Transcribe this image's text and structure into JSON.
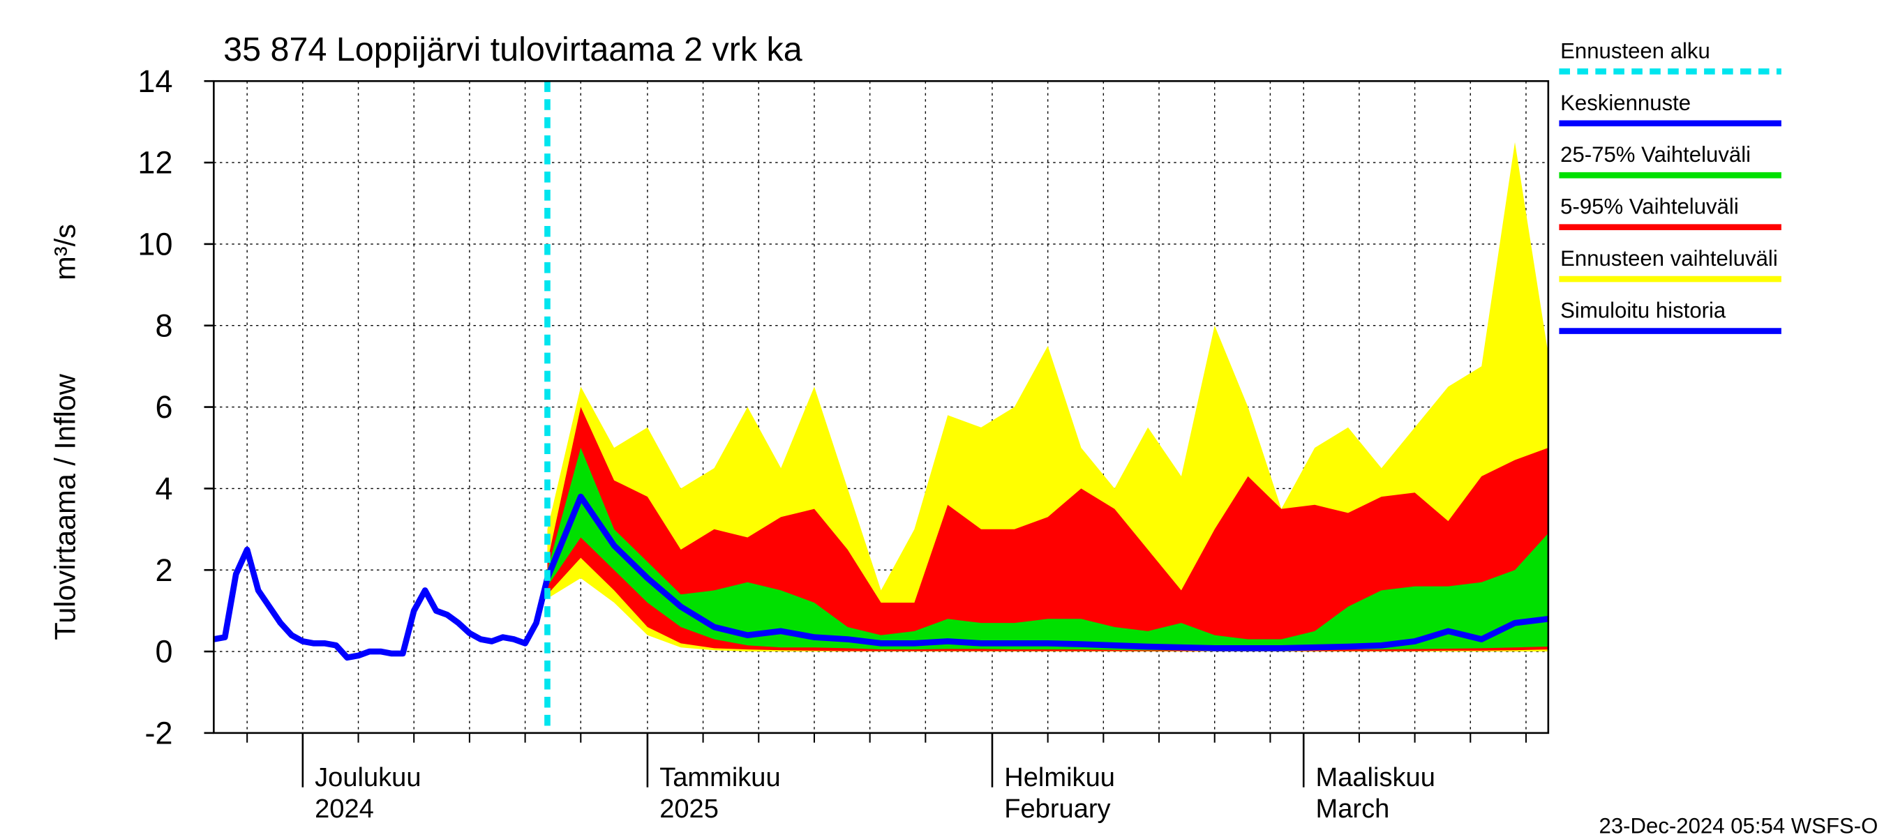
{
  "chart_data": {
    "type": "forecast",
    "title": "35 874 Loppijärvi tulovirtaama 2 vrk ka",
    "ylabel": "Tulovirtaama / Inflow",
    "yunit": "m³/s",
    "timestamp": "23-Dec-2024 05:54 WSFS-O",
    "xlim": [
      "2024-11-23",
      "2025-03-23"
    ],
    "ylim": [
      -2,
      14
    ],
    "yticks": [
      -2,
      0,
      2,
      4,
      6,
      8,
      10,
      12,
      14
    ],
    "xticks": [
      {
        "value": "2024-12-01",
        "label": "Joulukuu",
        "sublabel": "2024"
      },
      {
        "value": "2025-01-01",
        "label": "Tammikuu",
        "sublabel": "2025"
      },
      {
        "value": "2025-02-01",
        "label": "Helmikuu",
        "sublabel": "February"
      },
      {
        "value": "2025-03-01",
        "label": "Maaliskuu",
        "sublabel": "March"
      }
    ],
    "xgrid": [
      "2024-11-26",
      "2024-12-06",
      "2024-12-11",
      "2024-12-16",
      "2024-12-21",
      "2024-12-26",
      "2025-01-06",
      "2025-01-11",
      "2025-01-16",
      "2025-01-21",
      "2025-01-26",
      "2025-02-06",
      "2025-02-11",
      "2025-02-16",
      "2025-02-21",
      "2025-02-26",
      "2025-03-06",
      "2025-03-11",
      "2025-03-16",
      "2025-03-21"
    ],
    "grid": true,
    "forecast_start": {
      "name": "Ennusteen alku",
      "color": "#00e5ee",
      "x": "2024-12-23"
    },
    "forecast_x": [
      "2024-12-23",
      "2024-12-26",
      "2024-12-29",
      "2025-01-01",
      "2025-01-04",
      "2025-01-07",
      "2025-01-10",
      "2025-01-13",
      "2025-01-16",
      "2025-01-19",
      "2025-01-22",
      "2025-01-25",
      "2025-01-28",
      "2025-01-31",
      "2025-02-03",
      "2025-02-06",
      "2025-02-09",
      "2025-02-12",
      "2025-02-15",
      "2025-02-18",
      "2025-02-21",
      "2025-02-24",
      "2025-02-27",
      "2025-03-02",
      "2025-03-05",
      "2025-03-08",
      "2025-03-11",
      "2025-03-14",
      "2025-03-17",
      "2025-03-20",
      "2025-03-23"
    ],
    "bands": [
      {
        "name": "Ennusteen vaihteluväli",
        "color": "#ffff00",
        "upper": [
          3.0,
          6.5,
          5.0,
          5.5,
          4.0,
          4.5,
          6.0,
          4.5,
          6.5,
          4.0,
          1.5,
          3.0,
          5.8,
          5.5,
          6.0,
          7.5,
          5.0,
          4.0,
          5.5,
          4.3,
          8.0,
          6.0,
          3.5,
          5.0,
          5.5,
          4.5,
          5.5,
          6.5,
          7.0,
          12.5,
          7.3
        ],
        "lower": [
          1.3,
          1.8,
          1.2,
          0.4,
          0.1,
          0.03,
          0,
          0,
          0,
          0,
          0,
          0,
          0,
          0,
          0,
          0,
          0,
          0,
          0,
          0,
          0,
          0,
          0,
          0,
          0,
          0,
          0,
          0,
          0,
          0,
          0
        ]
      },
      {
        "name": "5-95% Vaihteluväli",
        "color": "#ff0000",
        "upper": [
          2.2,
          6.0,
          4.2,
          3.8,
          2.5,
          3.0,
          2.8,
          3.3,
          3.5,
          2.5,
          1.2,
          1.2,
          3.6,
          3.0,
          3.0,
          3.3,
          4.0,
          3.5,
          2.5,
          1.5,
          3.0,
          4.3,
          3.5,
          3.6,
          3.4,
          3.8,
          3.9,
          3.2,
          4.3,
          4.7,
          5.0
        ],
        "lower": [
          1.4,
          2.3,
          1.5,
          0.6,
          0.2,
          0.08,
          0.05,
          0.03,
          0.02,
          0.01,
          0.01,
          0.01,
          0.01,
          0.01,
          0.01,
          0.01,
          0.01,
          0.01,
          0.01,
          0.01,
          0.01,
          0.01,
          0.01,
          0.01,
          0.01,
          0.01,
          0.01,
          0.02,
          0.02,
          0.03,
          0.05
        ]
      },
      {
        "name": "25-75% Vaihteluväli",
        "color": "#00e000",
        "upper": [
          2.0,
          5.0,
          3.0,
          2.2,
          1.4,
          1.5,
          1.7,
          1.5,
          1.2,
          0.6,
          0.4,
          0.5,
          0.8,
          0.7,
          0.7,
          0.8,
          0.8,
          0.6,
          0.5,
          0.7,
          0.4,
          0.3,
          0.3,
          0.5,
          1.1,
          1.5,
          1.6,
          1.6,
          1.7,
          2.0,
          2.9
        ],
        "lower": [
          1.6,
          2.8,
          2.0,
          1.2,
          0.6,
          0.3,
          0.15,
          0.1,
          0.1,
          0.08,
          0.05,
          0.05,
          0.06,
          0.06,
          0.05,
          0.05,
          0.05,
          0.04,
          0.03,
          0.03,
          0.03,
          0.03,
          0.03,
          0.04,
          0.05,
          0.05,
          0.06,
          0.07,
          0.08,
          0.1,
          0.12
        ]
      }
    ],
    "median": {
      "name": "Keskiennuste",
      "color": "#0000ff",
      "values": [
        1.8,
        3.8,
        2.6,
        1.8,
        1.1,
        0.6,
        0.4,
        0.5,
        0.35,
        0.3,
        0.2,
        0.2,
        0.25,
        0.2,
        0.2,
        0.2,
        0.18,
        0.15,
        0.12,
        0.1,
        0.08,
        0.08,
        0.08,
        0.1,
        0.12,
        0.15,
        0.25,
        0.5,
        0.3,
        0.7,
        0.8
      ]
    },
    "history": {
      "name": "Simuloitu historia",
      "color": "#0000ff",
      "x": [
        "2024-11-23",
        "2024-11-24",
        "2024-11-25",
        "2024-11-26",
        "2024-11-27",
        "2024-11-28",
        "2024-11-29",
        "2024-11-30",
        "2024-12-01",
        "2024-12-02",
        "2024-12-03",
        "2024-12-04",
        "2024-12-05",
        "2024-12-06",
        "2024-12-07",
        "2024-12-08",
        "2024-12-09",
        "2024-12-10",
        "2024-12-11",
        "2024-12-12",
        "2024-12-13",
        "2024-12-14",
        "2024-12-15",
        "2024-12-16",
        "2024-12-17",
        "2024-12-18",
        "2024-12-19",
        "2024-12-20",
        "2024-12-21",
        "2024-12-22",
        "2024-12-23"
      ],
      "values": [
        0.3,
        0.35,
        1.9,
        2.5,
        1.5,
        1.1,
        0.7,
        0.4,
        0.25,
        0.2,
        0.2,
        0.15,
        -0.15,
        -0.1,
        0,
        0,
        -0.05,
        -0.05,
        1.0,
        1.5,
        1.0,
        0.9,
        0.7,
        0.45,
        0.3,
        0.25,
        0.35,
        0.3,
        0.2,
        0.7,
        1.8
      ]
    }
  }
}
